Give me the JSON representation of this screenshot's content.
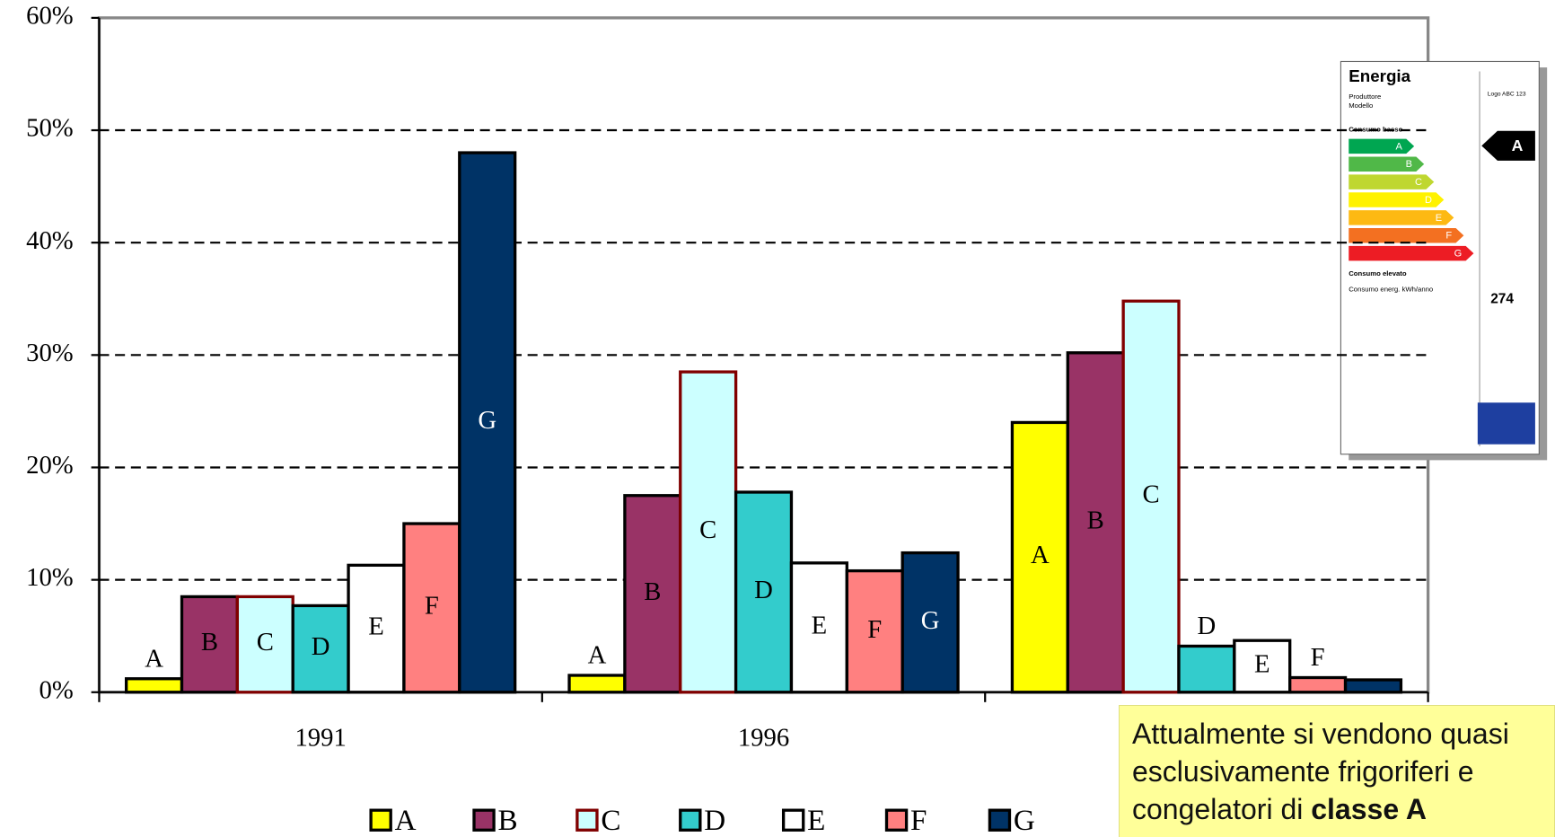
{
  "chart_data": {
    "type": "bar",
    "categories": [
      "1991",
      "1996",
      null
    ],
    "series": [
      {
        "name": "A",
        "color": "#ffff00",
        "stroke": "#000000",
        "values": [
          1.2,
          1.5,
          24
        ]
      },
      {
        "name": "B",
        "color": "#993366",
        "stroke": "#000000",
        "values": [
          8.5,
          17.5,
          30.2
        ]
      },
      {
        "name": "C",
        "color": "#ccffff",
        "stroke": "#800000",
        "values": [
          8.5,
          28.5,
          34.8
        ]
      },
      {
        "name": "D",
        "color": "#33cccc",
        "stroke": "#000000",
        "values": [
          7.7,
          17.8,
          4.1
        ]
      },
      {
        "name": "E",
        "color": "#ffffff",
        "stroke": "#000000",
        "values": [
          11.3,
          11.5,
          4.6
        ]
      },
      {
        "name": "F",
        "color": "#ff8080",
        "stroke": "#000000",
        "values": [
          15,
          10.8,
          1.3
        ]
      },
      {
        "name": "G",
        "color": "#003366",
        "stroke": "#000000",
        "values": [
          48,
          12.4,
          1.1
        ]
      }
    ],
    "ylim": [
      0,
      60
    ],
    "yticks": [
      {
        "value": 0,
        "label": "0%"
      },
      {
        "value": 10,
        "label": "10%"
      },
      {
        "value": 20,
        "label": "20%"
      },
      {
        "value": 30,
        "label": "30%"
      },
      {
        "value": 40,
        "label": "40%"
      },
      {
        "value": 50,
        "label": "50%"
      },
      {
        "value": 60,
        "label": "60%"
      }
    ],
    "grid": true,
    "legend": "bottom"
  },
  "energy_label": {
    "title": "Energia",
    "maker": "Produttore",
    "model": "Modello",
    "logo": "Logo ABC 123",
    "low": "Consumo basso",
    "high": "Consumo elevato",
    "classes": [
      "A",
      "B",
      "C",
      "D",
      "E",
      "F",
      "G"
    ],
    "class_colors": [
      "#00a651",
      "#50b848",
      "#bfd730",
      "#fff200",
      "#fdb913",
      "#f37021",
      "#ed1c24"
    ],
    "rating": "A",
    "consumption_label": "Consumo energ. kWh/anno",
    "consumption": "274"
  },
  "note": {
    "text": "Attualmente si vendono quasi esclusivamente frigoriferi e congelatori di ",
    "bold": "classe A"
  }
}
